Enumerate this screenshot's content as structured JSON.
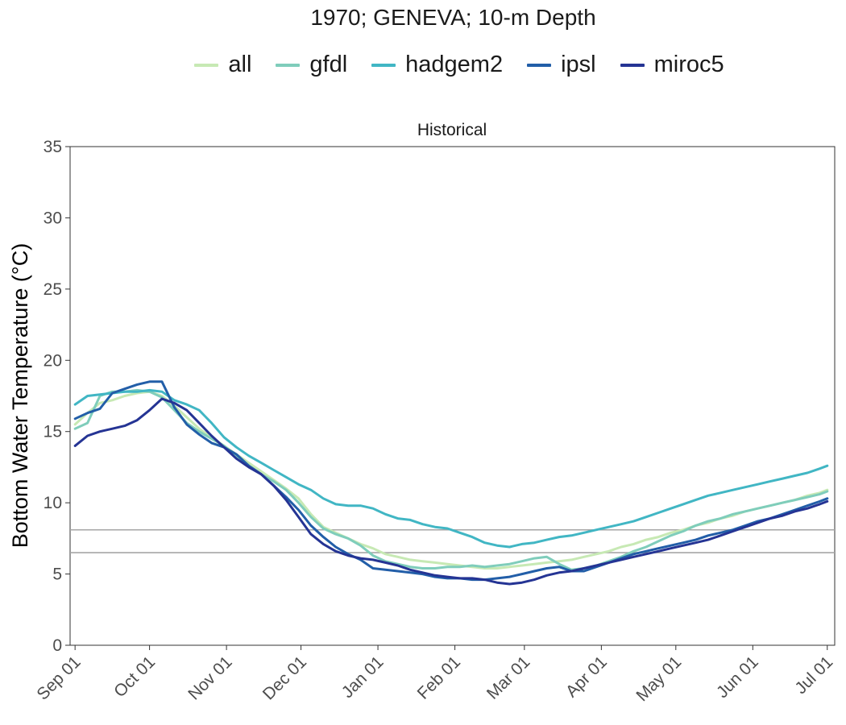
{
  "chart_data": {
    "type": "line",
    "title": "1970; GENEVA; 10-m Depth",
    "panel_label": "Historical",
    "ylabel": "Bottom Water Temperature (°C)",
    "xlabel": "",
    "ylim": [
      0,
      35
    ],
    "yticks": [
      0,
      5,
      10,
      15,
      20,
      25,
      30,
      35
    ],
    "xlim_days": [
      -2,
      306
    ],
    "xtick_labels": [
      "Sep 01",
      "Oct 01",
      "Nov 01",
      "Dec 01",
      "Jan 01",
      "Feb 01",
      "Mar 01",
      "Apr 01",
      "May 01",
      "Jun 01",
      "Jul 01"
    ],
    "xtick_days": [
      0,
      30,
      61,
      91,
      122,
      153,
      181,
      212,
      242,
      273,
      303
    ],
    "x_axis_start_date": "Sep 01",
    "hlines": [
      8.1,
      6.5
    ],
    "hline_color": "#a6a6a6",
    "legend_position": "top",
    "grid": false,
    "x": [
      0,
      5,
      10,
      15,
      20,
      25,
      30,
      35,
      40,
      45,
      50,
      55,
      60,
      65,
      70,
      75,
      80,
      85,
      90,
      95,
      100,
      105,
      110,
      115,
      120,
      125,
      130,
      135,
      140,
      145,
      150,
      155,
      160,
      165,
      170,
      175,
      180,
      185,
      190,
      195,
      200,
      205,
      210,
      215,
      220,
      225,
      230,
      235,
      240,
      245,
      250,
      255,
      260,
      265,
      270,
      275,
      280,
      285,
      290,
      295,
      300,
      303
    ],
    "series": [
      {
        "name": "all",
        "color": "#c7e9b4",
        "values": [
          15.5,
          16.3,
          17.0,
          17.2,
          17.5,
          17.7,
          17.8,
          17.5,
          16.8,
          16.0,
          15.2,
          14.6,
          14.0,
          13.4,
          12.8,
          12.2,
          11.6,
          11.0,
          10.3,
          9.2,
          8.3,
          7.9,
          7.5,
          7.1,
          6.8,
          6.4,
          6.2,
          6.0,
          5.9,
          5.8,
          5.7,
          5.6,
          5.5,
          5.4,
          5.4,
          5.5,
          5.6,
          5.7,
          5.8,
          5.9,
          6.0,
          6.2,
          6.4,
          6.6,
          6.9,
          7.1,
          7.4,
          7.6,
          7.9,
          8.1,
          8.4,
          8.6,
          8.9,
          9.1,
          9.4,
          9.6,
          9.8,
          10.0,
          10.2,
          10.5,
          10.7,
          10.9
        ]
      },
      {
        "name": "gfdl",
        "color": "#7fcdbb",
        "values": [
          15.2,
          15.6,
          17.5,
          17.8,
          17.8,
          17.9,
          17.8,
          17.4,
          16.5,
          15.6,
          15.0,
          14.5,
          14.0,
          13.2,
          12.6,
          12.0,
          11.5,
          10.9,
          10.0,
          9.0,
          8.2,
          7.8,
          7.5,
          7.0,
          6.3,
          5.9,
          5.7,
          5.5,
          5.4,
          5.4,
          5.5,
          5.5,
          5.6,
          5.5,
          5.6,
          5.7,
          5.9,
          6.1,
          6.2,
          5.7,
          5.3,
          5.4,
          5.6,
          5.9,
          6.2,
          6.6,
          6.9,
          7.3,
          7.7,
          8.0,
          8.4,
          8.7,
          8.9,
          9.2,
          9.4,
          9.6,
          9.8,
          10.0,
          10.2,
          10.4,
          10.6,
          10.8
        ]
      },
      {
        "name": "hadgem2",
        "color": "#41b6c4",
        "values": [
          16.9,
          17.5,
          17.6,
          17.7,
          17.8,
          17.8,
          17.9,
          17.8,
          17.2,
          16.9,
          16.5,
          15.6,
          14.6,
          13.9,
          13.3,
          12.8,
          12.3,
          11.8,
          11.3,
          10.9,
          10.3,
          9.9,
          9.8,
          9.8,
          9.6,
          9.2,
          8.9,
          8.8,
          8.5,
          8.3,
          8.2,
          7.9,
          7.6,
          7.2,
          7.0,
          6.9,
          7.1,
          7.2,
          7.4,
          7.6,
          7.7,
          7.9,
          8.1,
          8.3,
          8.5,
          8.7,
          9.0,
          9.3,
          9.6,
          9.9,
          10.2,
          10.5,
          10.7,
          10.9,
          11.1,
          11.3,
          11.5,
          11.7,
          11.9,
          12.1,
          12.4,
          12.6
        ]
      },
      {
        "name": "ipsl",
        "color": "#225ea8",
        "values": [
          15.9,
          16.3,
          16.6,
          17.7,
          18.0,
          18.3,
          18.5,
          18.5,
          16.7,
          15.5,
          14.8,
          14.2,
          13.9,
          13.4,
          12.6,
          12.0,
          11.2,
          10.4,
          9.5,
          8.4,
          7.6,
          6.9,
          6.4,
          6.0,
          5.4,
          5.3,
          5.2,
          5.1,
          5.0,
          4.8,
          4.7,
          4.7,
          4.6,
          4.6,
          4.7,
          4.8,
          5.0,
          5.2,
          5.4,
          5.5,
          5.2,
          5.2,
          5.5,
          5.8,
          6.1,
          6.4,
          6.6,
          6.8,
          7.0,
          7.2,
          7.4,
          7.7,
          7.9,
          8.1,
          8.4,
          8.7,
          8.9,
          9.2,
          9.5,
          9.8,
          10.1,
          10.3
        ]
      },
      {
        "name": "miroc5",
        "color": "#253494",
        "values": [
          14.0,
          14.7,
          15.0,
          15.2,
          15.4,
          15.8,
          16.5,
          17.3,
          17.0,
          16.5,
          15.6,
          14.7,
          13.9,
          13.1,
          12.5,
          12.0,
          11.2,
          10.2,
          9.0,
          7.8,
          7.1,
          6.6,
          6.3,
          6.1,
          6.0,
          5.8,
          5.6,
          5.3,
          5.1,
          4.9,
          4.8,
          4.7,
          4.7,
          4.6,
          4.4,
          4.3,
          4.4,
          4.6,
          4.9,
          5.1,
          5.2,
          5.4,
          5.6,
          5.8,
          6.0,
          6.2,
          6.4,
          6.6,
          6.8,
          7.0,
          7.2,
          7.4,
          7.7,
          8.0,
          8.3,
          8.6,
          8.9,
          9.1,
          9.4,
          9.6,
          9.9,
          10.1
        ]
      }
    ]
  }
}
